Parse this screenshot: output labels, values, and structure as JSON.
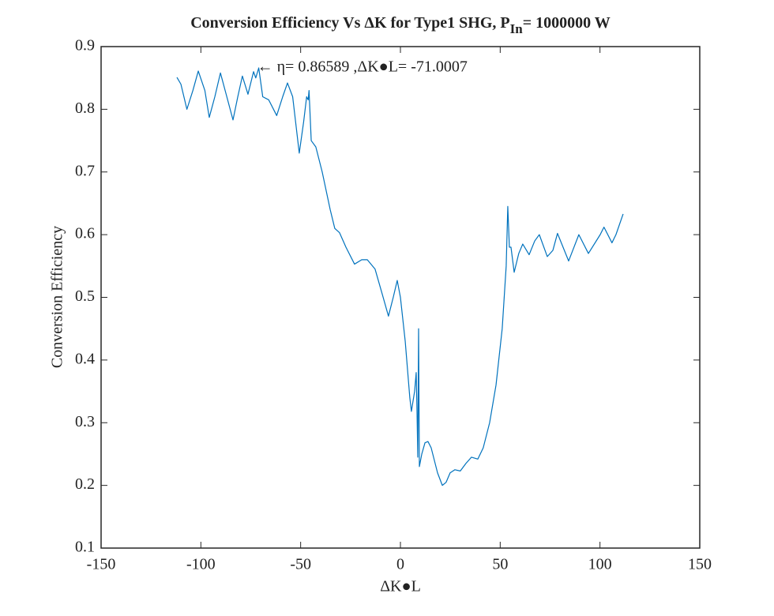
{
  "chart_data": {
    "type": "line",
    "title": [
      "Conversion Efficiency Vs ΔK for Type1 SHG, P",
      "In",
      "= 1000000 W"
    ],
    "xlabel": "ΔK●L",
    "ylabel": "Conversion Efficiency",
    "annotation": {
      "text": "← η= 0.86589 ,ΔK●L= -71.0007",
      "x": -71.0007,
      "y": 0.86589
    },
    "x": [
      -112,
      -110,
      -107,
      -104,
      -101.3,
      -98,
      -95.8,
      -93,
      -90.2,
      -87,
      -83.9,
      -81.5,
      -79.2,
      -76.4,
      -73.6,
      -72.5,
      -71,
      -69,
      -66,
      -62,
      -59,
      -56.6,
      -54,
      -50.7,
      -48.5,
      -47,
      -46.2,
      -45.8,
      -44.7,
      -42.4,
      -39.2,
      -35.2,
      -32.9,
      -30.5,
      -27.3,
      -23,
      -19.4,
      -16.6,
      -12.7,
      -9.1,
      -6,
      -3.6,
      -1.6,
      0,
      2.4,
      4.7,
      5.5,
      7.1,
      7.9,
      8.3,
      8.7,
      9.1,
      9.5,
      10.7,
      12.3,
      13.8,
      15.4,
      18.6,
      21,
      22.9,
      24.9,
      27.3,
      30,
      32.8,
      35.6,
      38.8,
      41.5,
      44.7,
      47.9,
      51,
      53,
      53.8,
      54.6,
      55.4,
      57,
      59.3,
      61.3,
      64.5,
      67.3,
      69.6,
      73.6,
      76.4,
      78.7,
      84.3,
      89.4,
      94.2,
      100.1,
      102,
      106,
      108,
      111.6
    ],
    "series": [
      {
        "color": "#0072bd",
        "values": [
          0.851,
          0.84,
          0.8,
          0.83,
          0.861,
          0.83,
          0.787,
          0.82,
          0.858,
          0.82,
          0.783,
          0.82,
          0.853,
          0.824,
          0.86,
          0.85,
          0.866,
          0.82,
          0.815,
          0.79,
          0.82,
          0.842,
          0.82,
          0.73,
          0.78,
          0.82,
          0.815,
          0.83,
          0.75,
          0.74,
          0.7,
          0.64,
          0.61,
          0.603,
          0.58,
          0.553,
          0.56,
          0.56,
          0.545,
          0.505,
          0.47,
          0.5,
          0.527,
          0.5,
          0.43,
          0.34,
          0.318,
          0.35,
          0.38,
          0.32,
          0.245,
          0.45,
          0.23,
          0.25,
          0.268,
          0.27,
          0.26,
          0.22,
          0.2,
          0.205,
          0.22,
          0.225,
          0.223,
          0.235,
          0.245,
          0.242,
          0.26,
          0.3,
          0.36,
          0.45,
          0.55,
          0.645,
          0.58,
          0.58,
          0.54,
          0.57,
          0.585,
          0.568,
          0.59,
          0.6,
          0.565,
          0.575,
          0.602,
          0.558,
          0.6,
          0.57,
          0.6,
          0.612,
          0.587,
          0.6,
          0.633
        ]
      }
    ],
    "xlim": [
      -150,
      150
    ],
    "xticks": [
      -150,
      -100,
      -50,
      0,
      50,
      100,
      150
    ],
    "ylim": [
      0.1,
      0.9
    ],
    "yticks": [
      0.1,
      0.2,
      0.3,
      0.4,
      0.5,
      0.6,
      0.7,
      0.8,
      0.9
    ],
    "grid": false
  }
}
